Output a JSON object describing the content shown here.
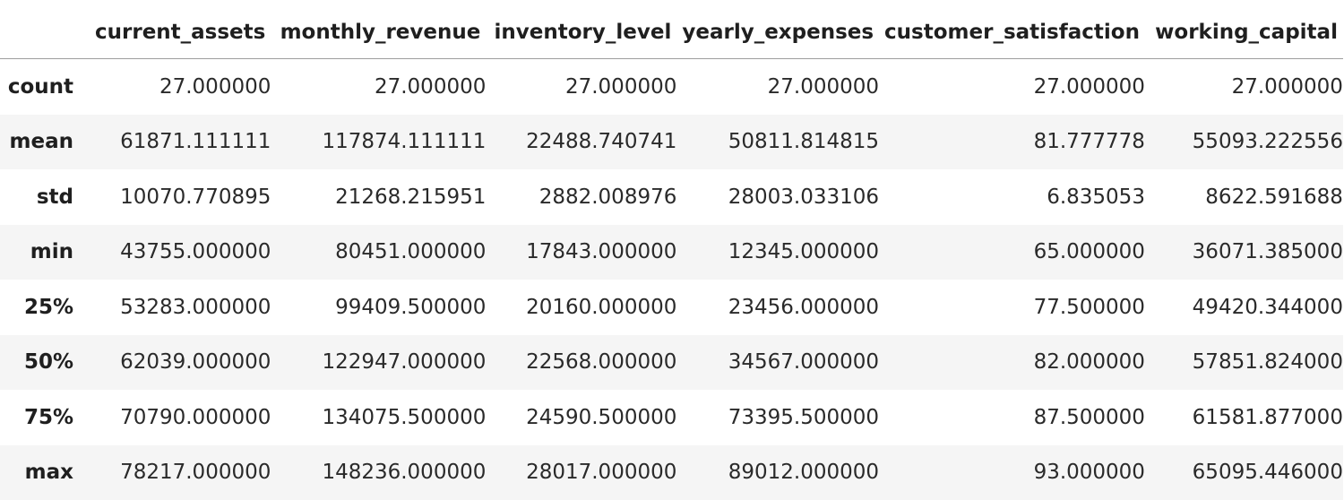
{
  "table": {
    "columns": [
      "current_assets",
      "monthly_revenue",
      "inventory_level",
      "yearly_expenses",
      "customer_satisfaction",
      "working_capital"
    ],
    "rows": [
      {
        "label": "count",
        "values": [
          "27.000000",
          "27.000000",
          "27.000000",
          "27.000000",
          "27.000000",
          "27.000000"
        ]
      },
      {
        "label": "mean",
        "values": [
          "61871.111111",
          "117874.111111",
          "22488.740741",
          "50811.814815",
          "81.777778",
          "55093.222556"
        ]
      },
      {
        "label": "std",
        "values": [
          "10070.770895",
          "21268.215951",
          "2882.008976",
          "28003.033106",
          "6.835053",
          "8622.591688"
        ]
      },
      {
        "label": "min",
        "values": [
          "43755.000000",
          "80451.000000",
          "17843.000000",
          "12345.000000",
          "65.000000",
          "36071.385000"
        ]
      },
      {
        "label": "25%",
        "values": [
          "53283.000000",
          "99409.500000",
          "20160.000000",
          "23456.000000",
          "77.500000",
          "49420.344000"
        ]
      },
      {
        "label": "50%",
        "values": [
          "62039.000000",
          "122947.000000",
          "22568.000000",
          "34567.000000",
          "82.000000",
          "57851.824000"
        ]
      },
      {
        "label": "75%",
        "values": [
          "70790.000000",
          "134075.500000",
          "24590.500000",
          "73395.500000",
          "87.500000",
          "61581.877000"
        ]
      },
      {
        "label": "max",
        "values": [
          "78217.000000",
          "148236.000000",
          "28017.000000",
          "89012.000000",
          "93.000000",
          "65095.446000"
        ]
      }
    ]
  }
}
